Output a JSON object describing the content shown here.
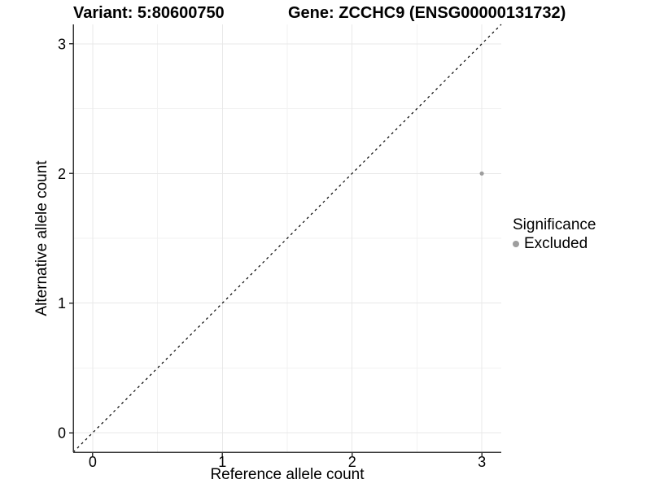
{
  "chart_data": {
    "type": "scatter",
    "title_left": "Variant: 5:80600750",
    "title_right": "Gene: ZCCHC9 (ENSG00000131732)",
    "xlabel": "Reference allele count",
    "ylabel": "Alternative allele count",
    "xlim": [
      -0.15,
      3.15
    ],
    "ylim": [
      -0.15,
      3.15
    ],
    "xticks": [
      0,
      1,
      2,
      3
    ],
    "yticks": [
      0,
      1,
      2,
      3
    ],
    "minor_xticks": [
      0.5,
      1.5,
      2.5
    ],
    "minor_yticks": [
      0.5,
      1.5,
      2.5
    ],
    "grid": true,
    "points": [
      {
        "x": 3,
        "y": 2,
        "series": "Excluded"
      }
    ],
    "reference_line": {
      "type": "identity",
      "slope": 1,
      "intercept": 0,
      "style": "dashed",
      "color": "#000000"
    },
    "legend": {
      "title": "Significance",
      "position": "right",
      "entries": [
        {
          "label": "Excluded",
          "color": "#9e9e9e",
          "marker": "circle"
        }
      ]
    },
    "colors": {
      "point": "#9e9e9e",
      "grid_major": "#e8e8e8",
      "grid_minor": "#f2f2f2",
      "axis_line": "#333333",
      "text": "#000000"
    }
  }
}
